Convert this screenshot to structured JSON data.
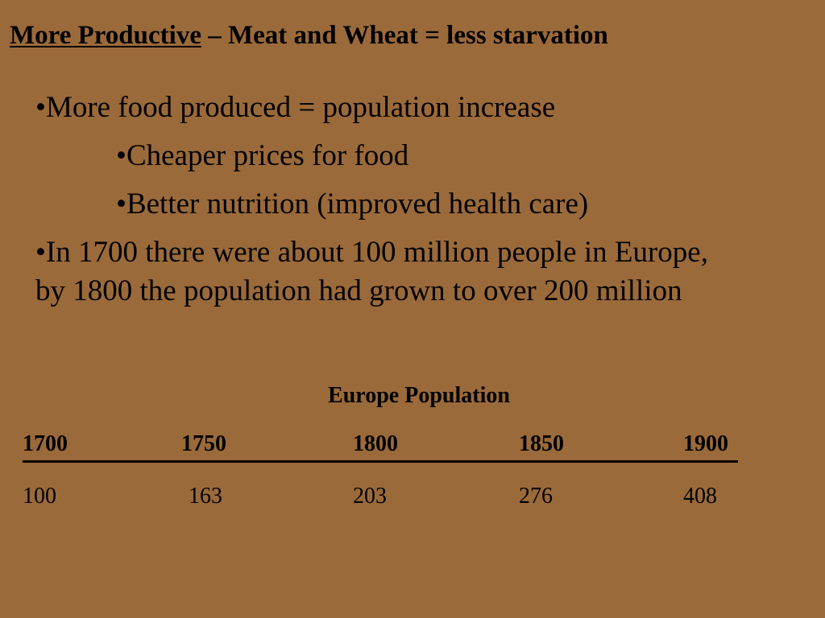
{
  "title": {
    "underlined": "More Productive",
    "rest": " – Meat and Wheat = less starvation"
  },
  "bullets": {
    "b1": "•More food produced = population increase",
    "b2": "•Cheaper prices for food",
    "b3": "•Better nutrition (improved health care)",
    "b4": "•In 1700 there were about 100 million people in Europe, by 1800 the population had grown to over 200 million"
  },
  "table": {
    "title": "Europe Population",
    "headers": [
      "1700",
      "1750",
      "1800",
      "1850",
      "1900"
    ],
    "values": [
      "100",
      "163",
      "203",
      "276",
      "408"
    ]
  }
}
